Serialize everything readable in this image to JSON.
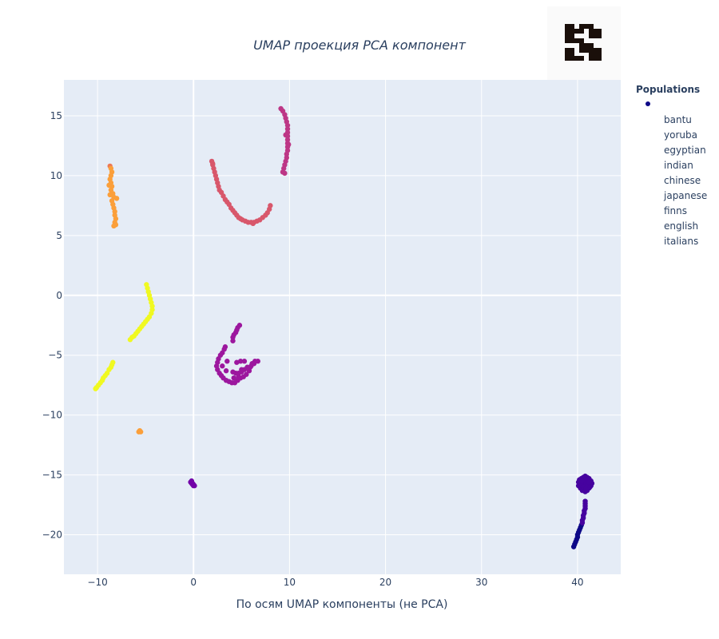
{
  "chart_data": {
    "type": "scatter",
    "title": "UMAP проекция PCA компонент",
    "xlabel": "По осям UMAP компоненты (не PCA)",
    "ylabel": "",
    "xlim": [
      -13.5,
      44.5
    ],
    "ylim": [
      -23.3,
      18.0
    ],
    "xticks": [
      -10,
      0,
      10,
      20,
      30,
      40
    ],
    "yticks": [
      15,
      10,
      5,
      0,
      -5,
      -10,
      -15,
      -20
    ],
    "grid": true,
    "legend_title": "Populations",
    "legend_placement": "top-right",
    "legend_entries": [
      "bantu",
      "yoruba",
      "egyptian",
      "indian",
      "chinese",
      "japanese",
      "finns",
      "english",
      "italians"
    ],
    "colors": {
      "plot_bg": "#e5ecf6",
      "grid": "#ffffff",
      "text": "#2a3f5f",
      "legend_marker": "#0d0887"
    },
    "clusters": [
      {
        "color": "#0d0887",
        "points": [
          [
            39.6,
            -21.0
          ],
          [
            39.7,
            -20.8
          ],
          [
            39.8,
            -20.6
          ],
          [
            39.9,
            -20.4
          ],
          [
            40.0,
            -20.2
          ],
          [
            40.0,
            -20.0
          ],
          [
            40.1,
            -19.8
          ],
          [
            40.2,
            -19.6
          ],
          [
            40.3,
            -19.4
          ],
          [
            40.4,
            -19.2
          ]
        ]
      },
      {
        "color": "#46039f",
        "points": [
          [
            40.5,
            -19.0
          ],
          [
            40.5,
            -18.8
          ],
          [
            40.6,
            -18.6
          ],
          [
            40.6,
            -18.4
          ],
          [
            40.7,
            -18.2
          ],
          [
            40.7,
            -18.0
          ],
          [
            40.8,
            -17.8
          ],
          [
            40.8,
            -17.6
          ],
          [
            40.8,
            -17.4
          ],
          [
            40.8,
            -17.2
          ],
          [
            40.2,
            -15.4
          ],
          [
            40.4,
            -15.3
          ],
          [
            40.6,
            -15.2
          ],
          [
            40.8,
            -15.1
          ],
          [
            41.0,
            -15.2
          ],
          [
            41.2,
            -15.3
          ],
          [
            41.4,
            -15.5
          ],
          [
            41.5,
            -15.7
          ],
          [
            41.4,
            -15.9
          ],
          [
            41.2,
            -16.1
          ],
          [
            41.0,
            -16.3
          ],
          [
            40.8,
            -16.4
          ],
          [
            40.5,
            -16.3
          ],
          [
            40.3,
            -16.1
          ],
          [
            40.1,
            -15.9
          ],
          [
            40.1,
            -15.6
          ],
          [
            40.6,
            -15.6
          ],
          [
            40.9,
            -15.7
          ],
          [
            40.7,
            -15.9
          ],
          [
            41.1,
            -15.8
          ],
          [
            40.4,
            -15.7
          ],
          [
            40.8,
            -15.4
          ],
          [
            41.2,
            -15.6
          ],
          [
            40.6,
            -16.0
          ],
          [
            40.9,
            -16.1
          ],
          [
            40.3,
            -15.5
          ],
          [
            41.3,
            -16.0
          ],
          [
            40.5,
            -15.5
          ]
        ]
      },
      {
        "color": "#7201a8",
        "points": [
          [
            -0.3,
            -15.6
          ],
          [
            -0.2,
            -15.7
          ],
          [
            -0.1,
            -15.8
          ],
          [
            0.0,
            -15.9
          ],
          [
            -0.1,
            -15.7
          ],
          [
            0.0,
            -15.8
          ],
          [
            -0.2,
            -15.5
          ],
          [
            0.1,
            -15.9
          ]
        ]
      },
      {
        "color": "#9c179e",
        "points": [
          [
            4.8,
            -2.5
          ],
          [
            4.6,
            -2.7
          ],
          [
            4.5,
            -2.9
          ],
          [
            4.4,
            -3.1
          ],
          [
            4.2,
            -3.3
          ],
          [
            4.1,
            -3.5
          ],
          [
            4.1,
            -3.8
          ],
          [
            3.3,
            -4.3
          ],
          [
            3.2,
            -4.5
          ],
          [
            3.0,
            -4.8
          ],
          [
            2.8,
            -5.0
          ],
          [
            2.6,
            -5.3
          ],
          [
            2.5,
            -5.6
          ],
          [
            2.4,
            -5.9
          ],
          [
            2.5,
            -6.2
          ],
          [
            2.7,
            -6.5
          ],
          [
            2.9,
            -6.7
          ],
          [
            3.1,
            -6.9
          ],
          [
            3.4,
            -7.1
          ],
          [
            3.7,
            -7.2
          ],
          [
            4.0,
            -7.3
          ],
          [
            4.3,
            -7.3
          ],
          [
            4.6,
            -7.1
          ],
          [
            4.9,
            -6.9
          ],
          [
            5.2,
            -6.8
          ],
          [
            5.5,
            -6.6
          ],
          [
            5.8,
            -6.3
          ],
          [
            5.9,
            -6.0
          ],
          [
            6.1,
            -5.7
          ],
          [
            6.4,
            -5.5
          ],
          [
            6.7,
            -5.5
          ],
          [
            6.3,
            -5.7
          ],
          [
            6.0,
            -5.9
          ],
          [
            5.6,
            -6.0
          ],
          [
            5.3,
            -6.2
          ],
          [
            5.0,
            -6.4
          ],
          [
            4.7,
            -6.5
          ],
          [
            4.4,
            -6.5
          ],
          [
            4.1,
            -6.4
          ],
          [
            4.5,
            -5.6
          ],
          [
            4.9,
            -5.5
          ],
          [
            5.3,
            -5.5
          ],
          [
            3.0,
            -5.9
          ],
          [
            3.4,
            -6.3
          ],
          [
            4.2,
            -6.9
          ],
          [
            5.0,
            -6.2
          ],
          [
            3.5,
            -5.5
          ],
          [
            4.7,
            -6.8
          ]
        ]
      },
      {
        "color": "#bd3786",
        "points": [
          [
            9.1,
            15.6
          ],
          [
            9.3,
            15.4
          ],
          [
            9.5,
            15.1
          ],
          [
            9.6,
            14.8
          ],
          [
            9.7,
            14.5
          ],
          [
            9.8,
            14.2
          ],
          [
            9.8,
            13.9
          ],
          [
            9.8,
            13.6
          ],
          [
            9.8,
            13.3
          ],
          [
            9.8,
            13.0
          ],
          [
            9.8,
            12.7
          ],
          [
            9.8,
            12.4
          ],
          [
            9.8,
            12.1
          ],
          [
            9.7,
            11.8
          ],
          [
            9.7,
            11.5
          ],
          [
            9.6,
            11.2
          ],
          [
            9.5,
            10.9
          ],
          [
            9.4,
            10.6
          ],
          [
            9.3,
            10.3
          ],
          [
            9.9,
            12.6
          ],
          [
            9.6,
            13.4
          ],
          [
            9.5,
            10.2
          ]
        ]
      },
      {
        "color": "#d8576b",
        "points": [
          [
            1.9,
            11.2
          ],
          [
            2.0,
            10.9
          ],
          [
            2.1,
            10.6
          ],
          [
            2.2,
            10.3
          ],
          [
            2.3,
            10.0
          ],
          [
            2.4,
            9.7
          ],
          [
            2.5,
            9.4
          ],
          [
            2.6,
            9.1
          ],
          [
            2.7,
            8.8
          ],
          [
            2.9,
            8.6
          ],
          [
            3.1,
            8.3
          ],
          [
            3.3,
            8.0
          ],
          [
            3.5,
            7.8
          ],
          [
            3.7,
            7.6
          ],
          [
            3.9,
            7.3
          ],
          [
            4.1,
            7.1
          ],
          [
            4.3,
            6.9
          ],
          [
            4.5,
            6.7
          ],
          [
            4.7,
            6.5
          ],
          [
            4.9,
            6.4
          ],
          [
            5.1,
            6.3
          ],
          [
            5.4,
            6.2
          ],
          [
            5.7,
            6.1
          ],
          [
            6.0,
            6.1
          ],
          [
            6.3,
            6.1
          ],
          [
            6.6,
            6.2
          ],
          [
            6.9,
            6.3
          ],
          [
            7.2,
            6.5
          ],
          [
            7.5,
            6.7
          ],
          [
            7.7,
            6.9
          ],
          [
            7.9,
            7.2
          ],
          [
            8.0,
            7.5
          ],
          [
            2.0,
            11.0
          ],
          [
            6.2,
            6.0
          ]
        ]
      },
      {
        "color": "#ed7953",
        "points": [
          [
            -8.7,
            10.8
          ]
        ]
      },
      {
        "color": "#fb9f3a",
        "points": [
          [
            -8.6,
            10.6
          ],
          [
            -8.5,
            10.3
          ],
          [
            -8.6,
            10.0
          ],
          [
            -8.7,
            9.7
          ],
          [
            -8.6,
            9.4
          ],
          [
            -8.5,
            9.1
          ],
          [
            -8.6,
            8.8
          ],
          [
            -8.4,
            8.5
          ],
          [
            -8.3,
            8.2
          ],
          [
            -8.5,
            7.9
          ],
          [
            -8.4,
            7.6
          ],
          [
            -8.3,
            7.3
          ],
          [
            -8.2,
            7.0
          ],
          [
            -8.2,
            6.7
          ],
          [
            -8.1,
            6.4
          ],
          [
            -8.2,
            6.1
          ],
          [
            -8.1,
            5.9
          ],
          [
            -8.3,
            5.8
          ],
          [
            -8.8,
            9.2
          ],
          [
            -8.7,
            8.4
          ],
          [
            -8.0,
            8.1
          ],
          [
            -5.7,
            -11.4
          ],
          [
            -5.5,
            -11.4
          ],
          [
            -5.6,
            -11.3
          ]
        ]
      },
      {
        "color": "#f0f921",
        "points": [
          [
            -4.9,
            0.9
          ],
          [
            -4.8,
            0.6
          ],
          [
            -4.7,
            0.3
          ],
          [
            -4.6,
            0.0
          ],
          [
            -4.5,
            -0.3
          ],
          [
            -4.4,
            -0.6
          ],
          [
            -4.3,
            -0.9
          ],
          [
            -4.3,
            -1.2
          ],
          [
            -4.4,
            -1.5
          ],
          [
            -4.6,
            -1.8
          ],
          [
            -4.8,
            -2.0
          ],
          [
            -5.0,
            -2.2
          ],
          [
            -5.2,
            -2.4
          ],
          [
            -5.4,
            -2.6
          ],
          [
            -5.6,
            -2.8
          ],
          [
            -5.8,
            -3.0
          ],
          [
            -6.0,
            -3.2
          ],
          [
            -6.2,
            -3.4
          ],
          [
            -6.4,
            -3.5
          ],
          [
            -6.6,
            -3.7
          ],
          [
            -8.4,
            -5.6
          ],
          [
            -8.5,
            -5.8
          ],
          [
            -8.6,
            -6.0
          ],
          [
            -8.8,
            -6.2
          ],
          [
            -9.0,
            -6.5
          ],
          [
            -9.2,
            -6.7
          ],
          [
            -9.4,
            -6.9
          ],
          [
            -9.5,
            -7.1
          ],
          [
            -9.7,
            -7.3
          ],
          [
            -9.9,
            -7.5
          ],
          [
            -10.1,
            -7.7
          ],
          [
            -10.2,
            -7.8
          ]
        ]
      }
    ]
  },
  "logo": {
    "name": "qr-logo"
  }
}
